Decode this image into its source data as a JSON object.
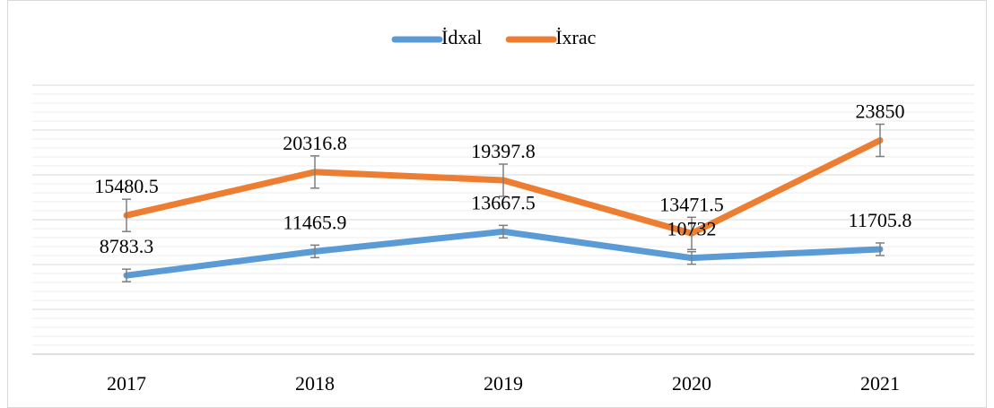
{
  "chart_data": {
    "type": "line",
    "categories": [
      "2017",
      "2018",
      "2019",
      "2020",
      "2021"
    ],
    "series": [
      {
        "name": "İdxal",
        "color": "#5b9bd5",
        "values": [
          8783.3,
          11465.9,
          13667.5,
          10732,
          11705.8
        ],
        "error": 700
      },
      {
        "name": "İxrac",
        "color": "#ed7d31",
        "values": [
          15480.5,
          20316.8,
          19397.8,
          13471.5,
          23850
        ],
        "error": 1800
      }
    ],
    "ylim": [
      0,
      30000
    ],
    "yticks": [
      0,
      5000,
      10000,
      15000,
      20000,
      25000,
      30000
    ],
    "minor_yticks": [
      1000,
      2000,
      3000,
      4000,
      6000,
      7000,
      8000,
      9000,
      11000,
      12000,
      13000,
      14000,
      16000,
      17000,
      18000,
      19000,
      21000,
      22000,
      23000,
      24000,
      26000,
      27000,
      28000,
      29000
    ],
    "grid": true,
    "legend": "top"
  }
}
